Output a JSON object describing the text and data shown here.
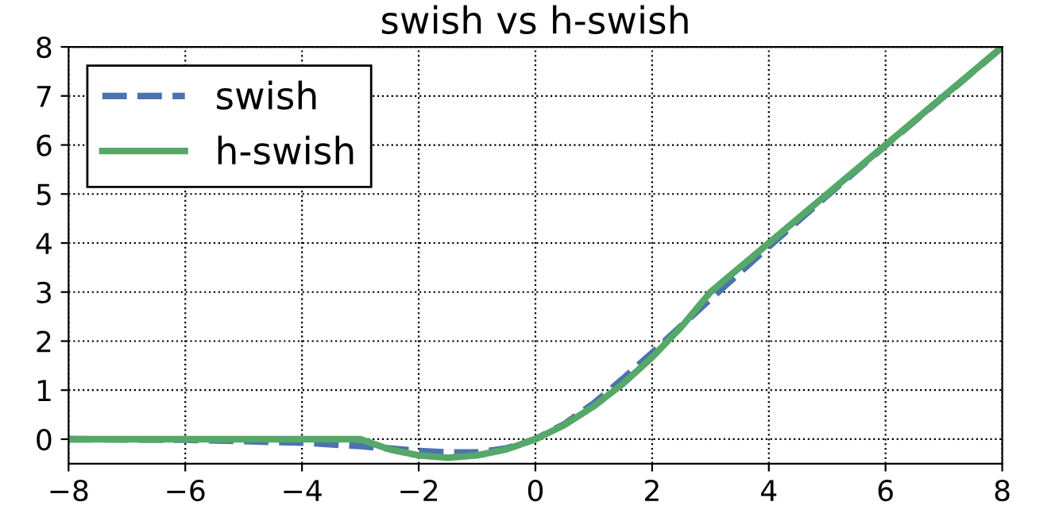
{
  "chart_data": {
    "type": "line",
    "title": "swish vs h-swish",
    "x": [
      -8,
      -6,
      -4,
      -3,
      -2.5,
      -2,
      -1.5,
      -1,
      -0.5,
      0,
      0.5,
      1,
      1.5,
      2,
      2.5,
      3,
      4,
      5,
      6,
      7,
      8
    ],
    "series": [
      {
        "name": "swish",
        "color": "#4c72b0",
        "line_style": "dashed",
        "values": [
          0,
          -0.01,
          -0.07,
          -0.14,
          -0.19,
          -0.24,
          -0.27,
          -0.27,
          -0.19,
          0,
          0.31,
          0.73,
          1.23,
          1.76,
          2.31,
          2.86,
          3.93,
          4.97,
          5.99,
          6.99,
          8
        ]
      },
      {
        "name": "h-swish",
        "color": "#55a868",
        "line_style": "solid",
        "values": [
          0,
          0,
          0,
          0,
          -0.21,
          -0.33,
          -0.38,
          -0.33,
          -0.21,
          0,
          0.29,
          0.67,
          1.13,
          1.67,
          2.29,
          3,
          4,
          5,
          6,
          7,
          8
        ]
      }
    ],
    "xlim": [
      -8,
      8
    ],
    "xticks": [
      -8,
      -6,
      -4,
      -2,
      0,
      2,
      4,
      6,
      8
    ],
    "ylim": [
      -0.5,
      8
    ],
    "yticks": [
      0,
      1,
      2,
      3,
      4,
      5,
      6,
      7,
      8
    ],
    "grid": true,
    "legend": "top left",
    "marker": "none"
  }
}
